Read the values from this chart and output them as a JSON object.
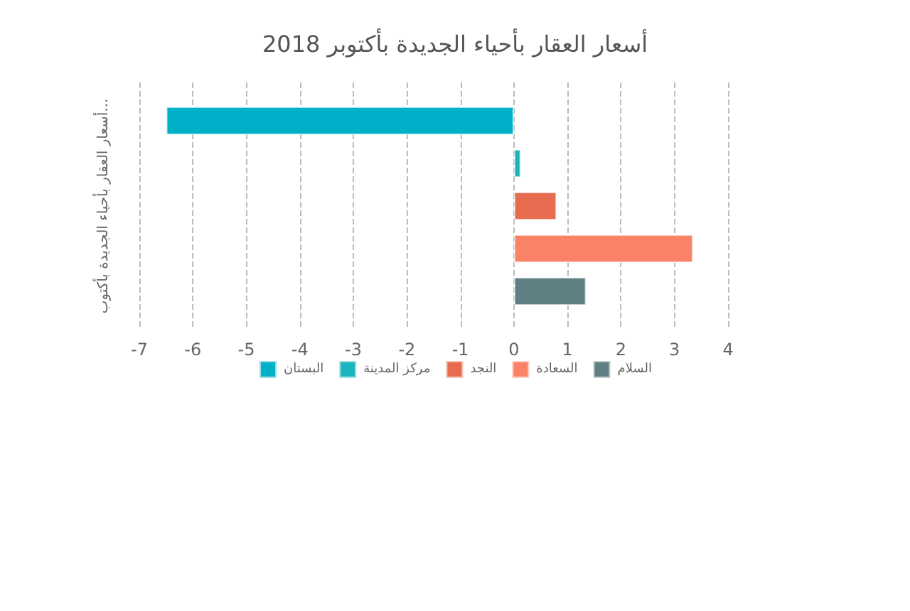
{
  "chart_data": {
    "type": "bar",
    "orientation": "horizontal",
    "title": "أسعار العقار بأحياء الجديدة بأكتوبر 2018",
    "ylabel": "أسعار العقار بأحياء الجديدة بأكتوب...",
    "categories": [
      null
    ],
    "series": [
      {
        "name": "البستان",
        "color": "#00afc8",
        "values": [
          -6.5
        ]
      },
      {
        "name": "مركز المدينة",
        "color": "#1bb5c0",
        "values": [
          0.13
        ]
      },
      {
        "name": "النجد",
        "color": "#e66b4f",
        "values": [
          0.8
        ]
      },
      {
        "name": "السعادة",
        "color": "#fa8266",
        "values": [
          3.35
        ]
      },
      {
        "name": "السلام",
        "color": "#607f82",
        "values": [
          1.35
        ]
      }
    ],
    "xlim": [
      -7,
      4
    ],
    "xticks": [
      -7,
      -6,
      -5,
      -4,
      -3,
      -2,
      -1,
      0,
      1,
      2,
      3,
      4
    ],
    "grid": "x",
    "legend": "bottom"
  }
}
